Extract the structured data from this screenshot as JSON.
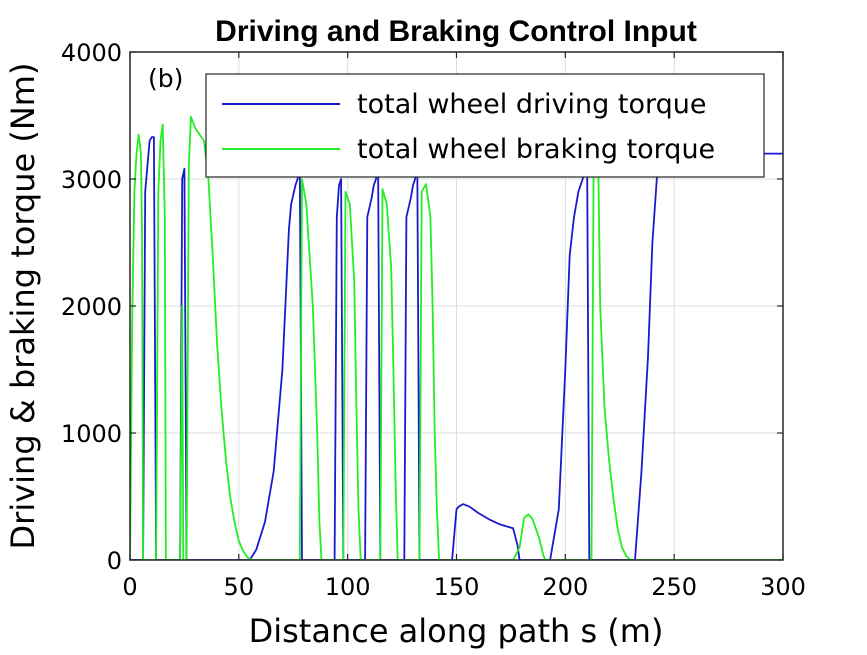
{
  "chart_data": {
    "type": "line",
    "title": "Driving and Braking Control Input",
    "xlabel": "Distance along path s (m)",
    "ylabel": "Driving & braking torque (Nm)",
    "panel_label": "(b)",
    "xlim": [
      0,
      300
    ],
    "ylim": [
      0,
      4000
    ],
    "x_ticks": [
      0,
      50,
      100,
      150,
      200,
      250,
      300
    ],
    "y_ticks": [
      0,
      1000,
      2000,
      3000,
      4000
    ],
    "grid": true,
    "legend_position": "top-right",
    "series": [
      {
        "name": "total wheel driving torque",
        "color": "#1a1acc",
        "points": [
          [
            0,
            0
          ],
          [
            6,
            0
          ],
          [
            7,
            2900
          ],
          [
            8,
            3100
          ],
          [
            9,
            3300
          ],
          [
            10,
            3330
          ],
          [
            11,
            3330
          ],
          [
            12,
            0
          ],
          [
            19,
            0
          ],
          [
            20,
            0
          ],
          [
            23,
            0
          ],
          [
            24,
            3000
          ],
          [
            25,
            3080
          ],
          [
            26,
            0
          ],
          [
            55,
            0
          ],
          [
            58,
            80
          ],
          [
            62,
            300
          ],
          [
            66,
            700
          ],
          [
            70,
            1500
          ],
          [
            73,
            2600
          ],
          [
            74,
            2800
          ],
          [
            76,
            2950
          ],
          [
            77,
            3000
          ],
          [
            78,
            3100
          ],
          [
            79,
            0
          ],
          [
            94,
            0
          ],
          [
            95,
            2700
          ],
          [
            96,
            2950
          ],
          [
            97,
            3000
          ],
          [
            98,
            0
          ],
          [
            108,
            0
          ],
          [
            109,
            2700
          ],
          [
            111,
            2850
          ],
          [
            112,
            2950
          ],
          [
            113,
            3000
          ],
          [
            114,
            3100
          ],
          [
            115,
            0
          ],
          [
            126,
            0
          ],
          [
            127,
            2700
          ],
          [
            129,
            2850
          ],
          [
            130,
            2950
          ],
          [
            131,
            3000
          ],
          [
            132,
            3100
          ],
          [
            133,
            0
          ],
          [
            148,
            0
          ],
          [
            150,
            400
          ],
          [
            151,
            420
          ],
          [
            153,
            440
          ],
          [
            156,
            420
          ],
          [
            160,
            370
          ],
          [
            165,
            320
          ],
          [
            170,
            280
          ],
          [
            174,
            260
          ],
          [
            176,
            250
          ],
          [
            178,
            120
          ],
          [
            179,
            0
          ],
          [
            193,
            0
          ],
          [
            197,
            400
          ],
          [
            200,
            1500
          ],
          [
            202,
            2400
          ],
          [
            204,
            2700
          ],
          [
            206,
            2900
          ],
          [
            208,
            3000
          ],
          [
            209,
            3100
          ],
          [
            210,
            3200
          ],
          [
            211,
            0
          ],
          [
            232,
            0
          ],
          [
            235,
            700
          ],
          [
            238,
            1600
          ],
          [
            240,
            2500
          ],
          [
            242,
            3000
          ],
          [
            243,
            3200
          ],
          [
            300,
            3200
          ]
        ]
      },
      {
        "name": "total wheel braking torque",
        "color": "#22ee22",
        "points": [
          [
            0,
            0
          ],
          [
            1,
            1900
          ],
          [
            2,
            2900
          ],
          [
            3,
            3200
          ],
          [
            4,
            3350
          ],
          [
            5,
            3200
          ],
          [
            5.5,
            2600
          ],
          [
            6,
            0
          ],
          [
            12,
            0
          ],
          [
            13,
            2900
          ],
          [
            14,
            3300
          ],
          [
            15,
            3430
          ],
          [
            16,
            2700
          ],
          [
            16.5,
            0
          ],
          [
            23,
            0
          ],
          [
            24,
            2000
          ],
          [
            24.5,
            0
          ],
          [
            26,
            0
          ],
          [
            27,
            3100
          ],
          [
            28,
            3490
          ],
          [
            30,
            3400
          ],
          [
            32,
            3350
          ],
          [
            34,
            3300
          ],
          [
            36,
            3000
          ],
          [
            38,
            2400
          ],
          [
            40,
            1700
          ],
          [
            42,
            1200
          ],
          [
            44,
            800
          ],
          [
            46,
            500
          ],
          [
            48,
            300
          ],
          [
            50,
            150
          ],
          [
            52,
            70
          ],
          [
            54,
            20
          ],
          [
            56,
            0
          ],
          [
            78,
            0
          ],
          [
            79,
            3000
          ],
          [
            81,
            2800
          ],
          [
            84,
            2000
          ],
          [
            86,
            1000
          ],
          [
            87,
            300
          ],
          [
            88,
            0
          ],
          [
            98,
            0
          ],
          [
            99,
            2900
          ],
          [
            101,
            2800
          ],
          [
            103,
            2200
          ],
          [
            104,
            1200
          ],
          [
            105,
            400
          ],
          [
            106,
            0
          ],
          [
            115,
            0
          ],
          [
            116,
            2920
          ],
          [
            118,
            2800
          ],
          [
            120,
            2300
          ],
          [
            121,
            1500
          ],
          [
            122,
            600
          ],
          [
            123,
            0
          ],
          [
            133,
            0
          ],
          [
            134,
            2900
          ],
          [
            136,
            2960
          ],
          [
            138,
            2700
          ],
          [
            139,
            2000
          ],
          [
            140,
            1000
          ],
          [
            141,
            400
          ],
          [
            142,
            0
          ],
          [
            176,
            0
          ],
          [
            179,
            100
          ],
          [
            181,
            330
          ],
          [
            183,
            360
          ],
          [
            185,
            320
          ],
          [
            188,
            170
          ],
          [
            190,
            30
          ],
          [
            191,
            0
          ],
          [
            212,
            0
          ],
          [
            213,
            3100
          ],
          [
            214,
            3200
          ],
          [
            215,
            3300
          ],
          [
            216,
            2000
          ],
          [
            218,
            1200
          ],
          [
            220,
            800
          ],
          [
            222,
            500
          ],
          [
            224,
            250
          ],
          [
            226,
            100
          ],
          [
            228,
            30
          ],
          [
            230,
            0
          ],
          [
            300,
            0
          ]
        ]
      }
    ]
  }
}
